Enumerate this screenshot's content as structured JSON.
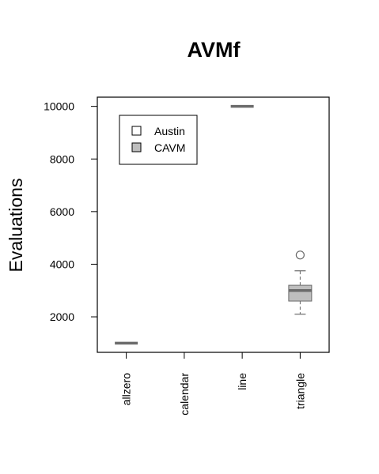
{
  "chart_data": {
    "type": "boxplot",
    "title": "AVMf",
    "xlabel": "",
    "ylabel": "Evaluations",
    "ylim": [
      650,
      10350
    ],
    "y_ticks": [
      2000,
      4000,
      6000,
      8000,
      10000
    ],
    "y_tick_labels": [
      "2000",
      "4000",
      "6000",
      "8000",
      "10000"
    ],
    "categories": [
      "allzero",
      "calendar",
      "line",
      "triangle"
    ],
    "legend": {
      "position": "top-left",
      "entries": [
        {
          "label": "Austin",
          "fill": "#ffffff"
        },
        {
          "label": "CAVM",
          "fill": "#bebebe"
        }
      ]
    },
    "grid": false,
    "series": [
      {
        "name": "CAVM",
        "color": "#bebebe",
        "boxes": [
          {
            "category": "allzero",
            "whisker_low": 1000,
            "q1": 1000,
            "median": 1000,
            "q3": 1000,
            "whisker_high": 1000,
            "outliers": []
          },
          {
            "category": "line",
            "whisker_low": 10000,
            "q1": 10000,
            "median": 10000,
            "q3": 10000,
            "whisker_high": 10000,
            "outliers": []
          },
          {
            "category": "triangle",
            "whisker_low": 2100,
            "q1": 2600,
            "median": 3000,
            "q3": 3200,
            "whisker_high": 3750,
            "outliers": [
              4350
            ]
          }
        ]
      }
    ]
  }
}
